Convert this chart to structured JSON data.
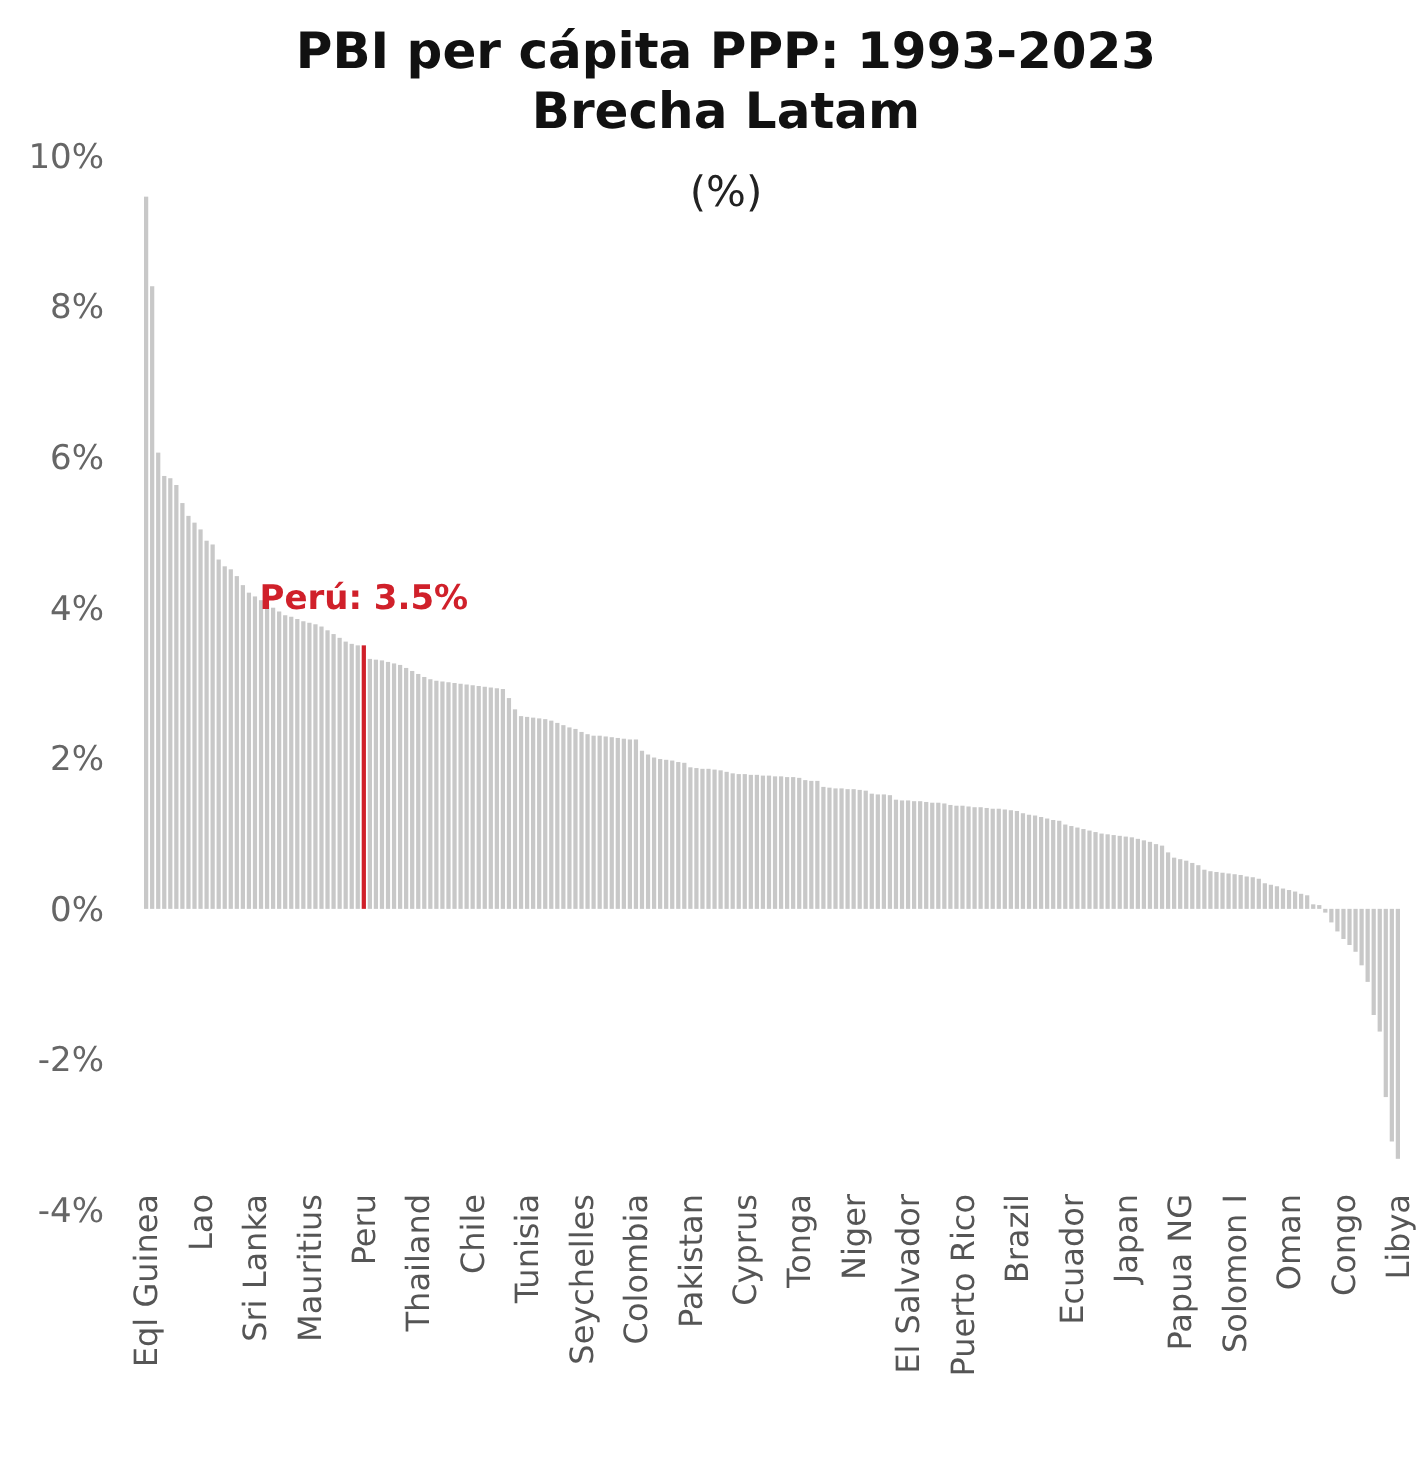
{
  "chart_data": {
    "type": "bar",
    "title": "PBI per cápita PPP: 1993-2023\nBrecha Latam",
    "subtitle": "(%)",
    "categories": [
      "Eql Guinea",
      null,
      null,
      null,
      null,
      null,
      null,
      null,
      null,
      "Lao",
      null,
      null,
      null,
      null,
      null,
      null,
      null,
      null,
      "Sri Lanka",
      null,
      null,
      null,
      null,
      null,
      null,
      null,
      null,
      "Mauritius",
      null,
      null,
      null,
      null,
      null,
      null,
      null,
      null,
      "Peru",
      null,
      null,
      null,
      null,
      null,
      null,
      null,
      null,
      "Thailand",
      null,
      null,
      null,
      null,
      null,
      null,
      null,
      null,
      "Chile",
      null,
      null,
      null,
      null,
      null,
      null,
      null,
      null,
      "Tunisia",
      null,
      null,
      null,
      null,
      null,
      null,
      null,
      null,
      "Seychelles",
      null,
      null,
      null,
      null,
      null,
      null,
      null,
      null,
      "Colombia",
      null,
      null,
      null,
      null,
      null,
      null,
      null,
      null,
      "Pakistan",
      null,
      null,
      null,
      null,
      null,
      null,
      null,
      null,
      "Cyprus",
      null,
      null,
      null,
      null,
      null,
      null,
      null,
      null,
      "Tonga",
      null,
      null,
      null,
      null,
      null,
      null,
      null,
      null,
      "Niger",
      null,
      null,
      null,
      null,
      null,
      null,
      null,
      null,
      "El Salvador",
      null,
      null,
      null,
      null,
      null,
      null,
      null,
      null,
      "Puerto Rico",
      null,
      null,
      null,
      null,
      null,
      null,
      null,
      null,
      "Brazil",
      null,
      null,
      null,
      null,
      null,
      null,
      null,
      null,
      "Ecuador",
      null,
      null,
      null,
      null,
      null,
      null,
      null,
      null,
      "Japan",
      null,
      null,
      null,
      null,
      null,
      null,
      null,
      null,
      "Papua NG",
      null,
      null,
      null,
      null,
      null,
      null,
      null,
      null,
      "Solomon I",
      null,
      null,
      null,
      null,
      null,
      null,
      null,
      null,
      "Oman",
      null,
      null,
      null,
      null,
      null,
      null,
      null,
      null,
      "Congo",
      null,
      null,
      null,
      null,
      null,
      null,
      null,
      null,
      "Libya"
    ],
    "values": [
      9.46,
      8.27,
      6.06,
      5.75,
      5.72,
      5.63,
      5.39,
      5.22,
      5.13,
      5.04,
      4.89,
      4.84,
      4.64,
      4.55,
      4.51,
      4.42,
      4.3,
      4.2,
      4.15,
      4.1,
      4.05,
      4.0,
      3.95,
      3.9,
      3.88,
      3.85,
      3.82,
      3.8,
      3.78,
      3.75,
      3.7,
      3.65,
      3.6,
      3.55,
      3.52,
      3.5,
      3.5,
      3.32,
      3.31,
      3.3,
      3.28,
      3.26,
      3.24,
      3.2,
      3.16,
      3.12,
      3.08,
      3.05,
      3.03,
      3.02,
      3.01,
      3.0,
      2.99,
      2.98,
      2.97,
      2.96,
      2.95,
      2.94,
      2.93,
      2.92,
      2.8,
      2.65,
      2.56,
      2.55,
      2.54,
      2.53,
      2.52,
      2.5,
      2.47,
      2.44,
      2.41,
      2.39,
      2.35,
      2.32,
      2.3,
      2.3,
      2.29,
      2.28,
      2.27,
      2.26,
      2.25,
      2.25,
      2.1,
      2.05,
      2.01,
      1.99,
      1.98,
      1.97,
      1.95,
      1.94,
      1.88,
      1.87,
      1.86,
      1.86,
      1.85,
      1.84,
      1.82,
      1.8,
      1.79,
      1.79,
      1.78,
      1.78,
      1.77,
      1.77,
      1.76,
      1.76,
      1.75,
      1.75,
      1.74,
      1.71,
      1.7,
      1.7,
      1.62,
      1.61,
      1.6,
      1.6,
      1.59,
      1.59,
      1.58,
      1.57,
      1.53,
      1.52,
      1.52,
      1.51,
      1.45,
      1.44,
      1.44,
      1.43,
      1.43,
      1.42,
      1.41,
      1.41,
      1.4,
      1.38,
      1.37,
      1.37,
      1.36,
      1.35,
      1.35,
      1.34,
      1.33,
      1.33,
      1.32,
      1.31,
      1.3,
      1.27,
      1.25,
      1.24,
      1.22,
      1.2,
      1.18,
      1.17,
      1.12,
      1.1,
      1.08,
      1.06,
      1.04,
      1.02,
      1.0,
      0.99,
      0.98,
      0.97,
      0.96,
      0.95,
      0.93,
      0.91,
      0.89,
      0.86,
      0.84,
      0.75,
      0.68,
      0.66,
      0.64,
      0.61,
      0.58,
      0.52,
      0.5,
      0.49,
      0.48,
      0.47,
      0.46,
      0.45,
      0.43,
      0.42,
      0.4,
      0.34,
      0.32,
      0.3,
      0.27,
      0.25,
      0.23,
      0.2,
      0.18,
      0.06,
      0.05,
      -0.05,
      -0.18,
      -0.3,
      -0.4,
      -0.48,
      -0.57,
      -0.75,
      -0.97,
      -1.41,
      -1.63,
      -2.5,
      -3.09,
      -3.32
    ],
    "colors": [
      "#c8c8c8",
      "#c8c8c8",
      "#c8c8c8",
      "#c8c8c8",
      "#c8c8c8",
      "#c8c8c8",
      "#c8c8c8",
      "#c8c8c8",
      "#c8c8c8",
      "#c8c8c8",
      "#c8c8c8",
      "#c8c8c8",
      "#c8c8c8",
      "#c8c8c8",
      "#c8c8c8",
      "#c8c8c8",
      "#c8c8c8",
      "#c8c8c8",
      "#c8c8c8",
      "#c8c8c8",
      "#c8c8c8",
      "#c8c8c8",
      "#c8c8c8",
      "#c8c8c8",
      "#c8c8c8",
      "#c8c8c8",
      "#c8c8c8",
      "#c8c8c8",
      "#c8c8c8",
      "#c8c8c8",
      "#c8c8c8",
      "#c8c8c8",
      "#c8c8c8",
      "#c8c8c8",
      "#c8c8c8",
      "#c8c8c8",
      "#d0202a",
      "#c8c8c8",
      "#c8c8c8",
      "#c8c8c8",
      "#c8c8c8",
      "#c8c8c8",
      "#c8c8c8",
      "#c8c8c8",
      "#c8c8c8",
      "#c8c8c8",
      "#c8c8c8",
      "#c8c8c8",
      "#c8c8c8",
      "#c8c8c8",
      "#c8c8c8",
      "#c8c8c8",
      "#c8c8c8",
      "#c8c8c8",
      "#c8c8c8",
      "#c8c8c8",
      "#c8c8c8",
      "#c8c8c8",
      "#c8c8c8",
      "#c8c8c8",
      "#c8c8c8",
      "#c8c8c8",
      "#c8c8c8",
      "#c8c8c8",
      "#c8c8c8",
      "#c8c8c8",
      "#c8c8c8",
      "#c8c8c8",
      "#c8c8c8",
      "#c8c8c8",
      "#c8c8c8",
      "#c8c8c8",
      "#c8c8c8",
      "#c8c8c8",
      "#c8c8c8",
      "#c8c8c8",
      "#c8c8c8",
      "#c8c8c8",
      "#c8c8c8",
      "#c8c8c8",
      "#c8c8c8",
      "#c8c8c8",
      "#c8c8c8",
      "#c8c8c8",
      "#c8c8c8",
      "#c8c8c8",
      "#c8c8c8",
      "#c8c8c8",
      "#c8c8c8",
      "#c8c8c8",
      "#c8c8c8",
      "#c8c8c8",
      "#c8c8c8",
      "#c8c8c8",
      "#c8c8c8",
      "#c8c8c8",
      "#c8c8c8",
      "#c8c8c8",
      "#c8c8c8",
      "#c8c8c8",
      "#c8c8c8",
      "#c8c8c8",
      "#c8c8c8",
      "#c8c8c8",
      "#c8c8c8",
      "#c8c8c8",
      "#c8c8c8",
      "#c8c8c8",
      "#c8c8c8",
      "#c8c8c8",
      "#c8c8c8",
      "#c8c8c8",
      "#c8c8c8",
      "#c8c8c8",
      "#c8c8c8",
      "#c8c8c8",
      "#c8c8c8",
      "#c8c8c8",
      "#c8c8c8",
      "#c8c8c8",
      "#c8c8c8",
      "#c8c8c8",
      "#c8c8c8",
      "#c8c8c8",
      "#c8c8c8",
      "#c8c8c8",
      "#c8c8c8",
      "#c8c8c8",
      "#c8c8c8",
      "#c8c8c8",
      "#c8c8c8",
      "#c8c8c8",
      "#c8c8c8",
      "#c8c8c8",
      "#c8c8c8",
      "#c8c8c8",
      "#c8c8c8",
      "#c8c8c8",
      "#c8c8c8",
      "#c8c8c8",
      "#c8c8c8",
      "#c8c8c8",
      "#c8c8c8",
      "#c8c8c8",
      "#c8c8c8",
      "#c8c8c8",
      "#c8c8c8",
      "#c8c8c8",
      "#c8c8c8",
      "#c8c8c8",
      "#c8c8c8",
      "#c8c8c8",
      "#c8c8c8",
      "#c8c8c8",
      "#c8c8c8",
      "#c8c8c8",
      "#c8c8c8",
      "#c8c8c8",
      "#c8c8c8",
      "#c8c8c8",
      "#c8c8c8",
      "#c8c8c8",
      "#c8c8c8",
      "#c8c8c8",
      "#c8c8c8",
      "#c8c8c8",
      "#c8c8c8",
      "#c8c8c8",
      "#c8c8c8",
      "#c8c8c8",
      "#c8c8c8",
      "#c8c8c8",
      "#c8c8c8",
      "#c8c8c8",
      "#c8c8c8",
      "#c8c8c8",
      "#c8c8c8",
      "#c8c8c8",
      "#c8c8c8",
      "#c8c8c8",
      "#c8c8c8",
      "#c8c8c8",
      "#c8c8c8",
      "#c8c8c8",
      "#c8c8c8",
      "#c8c8c8",
      "#c8c8c8",
      "#c8c8c8",
      "#c8c8c8",
      "#c8c8c8",
      "#c8c8c8",
      "#c8c8c8",
      "#c8c8c8",
      "#c8c8c8",
      "#c8c8c8",
      "#c8c8c8",
      "#c8c8c8",
      "#c8c8c8",
      "#c8c8c8",
      "#c8c8c8",
      "#c8c8c8",
      "#c8c8c8",
      "#c8c8c8",
      "#c8c8c8",
      "#c8c8c8",
      "#c8c8c8",
      "#c8c8c8",
      "#c8c8c8"
    ],
    "ylim": [
      -4,
      10
    ],
    "yticks": [
      {
        "value": -4,
        "label": "-4%"
      },
      {
        "value": -2,
        "label": "-2%"
      },
      {
        "value": 0,
        "label": "0%"
      },
      {
        "value": 2,
        "label": "2%"
      },
      {
        "value": 4,
        "label": "4%"
      },
      {
        "value": 6,
        "label": "6%"
      },
      {
        "value": 8,
        "label": "8%"
      },
      {
        "value": 10,
        "label": "10%"
      }
    ],
    "annotations": [
      {
        "text": "Perú: 3.5%",
        "x": "Peru",
        "y": 3.5
      }
    ],
    "grid": false
  }
}
